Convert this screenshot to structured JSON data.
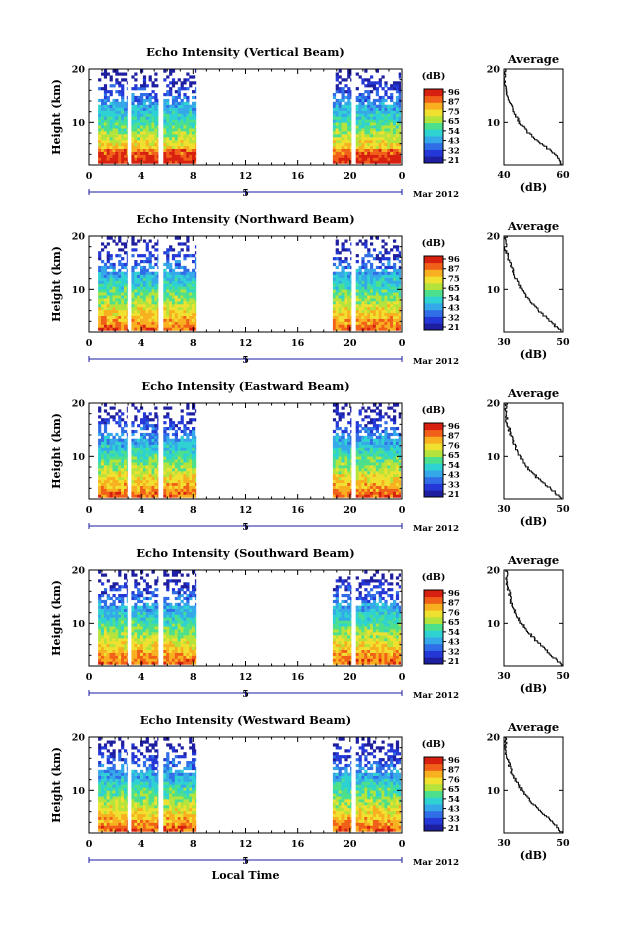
{
  "figure": {
    "date_label": "Mar 2012",
    "date_tick_label": "5",
    "x_axis_label": "Local Time",
    "colorbar_unit": "(dB)",
    "avg_title": "Average",
    "avg_xlabel": "(dB)",
    "colormap": [
      "#1e1ea0",
      "#2438d8",
      "#2f6ee6",
      "#34a8e8",
      "#2fd2d2",
      "#4ce08c",
      "#b4e43c",
      "#f0e030",
      "#f8b020",
      "#f06018",
      "#d82010"
    ]
  },
  "chart_data": [
    {
      "type": "heatmap",
      "title": "Echo Intensity (Vertical Beam)",
      "ylabel": "Height (km)",
      "xlabel": "Local Time",
      "xlim": [
        0,
        24
      ],
      "ylim": [
        2,
        20
      ],
      "x_ticks": [
        "0",
        "4",
        "8",
        "12",
        "16",
        "20",
        "0"
      ],
      "y_ticks": [
        "10",
        "20"
      ],
      "data_segments_hours": [
        [
          0.7,
          2.95
        ],
        [
          3.25,
          5.3
        ],
        [
          5.7,
          8.2
        ],
        [
          18.7,
          20.1
        ],
        [
          20.45,
          23.9
        ]
      ],
      "colorbar_ticks": [
        "96",
        "87",
        "75",
        "65",
        "54",
        "43",
        "32",
        "21"
      ],
      "colorbar_range": [
        21,
        96
      ],
      "average_profile": {
        "title": "Average",
        "xlabel": "(dB)",
        "xlim": [
          40,
          60
        ],
        "x_ticks": [
          "40",
          "60"
        ],
        "heights_km": [
          2,
          4,
          6,
          8,
          10,
          12,
          14,
          16,
          18,
          20
        ],
        "db": [
          60.0,
          57.5,
          53.0,
          48.5,
          45.5,
          43.5,
          42.0,
          40.8,
          40.0,
          40.6
        ]
      }
    },
    {
      "type": "heatmap",
      "title": "Echo Intensity (Northward Beam)",
      "ylabel": "Height (km)",
      "xlabel": "Local Time",
      "xlim": [
        0,
        24
      ],
      "ylim": [
        2,
        20
      ],
      "x_ticks": [
        "0",
        "4",
        "8",
        "12",
        "16",
        "20",
        "0"
      ],
      "y_ticks": [
        "10",
        "20"
      ],
      "data_segments_hours": [
        [
          0.7,
          2.95
        ],
        [
          3.25,
          5.3
        ],
        [
          5.7,
          8.2
        ],
        [
          18.7,
          20.1
        ],
        [
          20.45,
          23.9
        ]
      ],
      "colorbar_ticks": [
        "96",
        "87",
        "75",
        "65",
        "54",
        "43",
        "32",
        "21"
      ],
      "colorbar_range": [
        21,
        96
      ],
      "average_profile": {
        "title": "Average",
        "xlabel": "(dB)",
        "xlim": [
          30,
          50
        ],
        "x_ticks": [
          "30",
          "50"
        ],
        "heights_km": [
          2,
          4,
          6,
          8,
          10,
          12,
          14,
          16,
          18,
          20
        ],
        "db": [
          50.0,
          46.0,
          42.0,
          38.5,
          36.0,
          34.2,
          32.8,
          31.5,
          30.5,
          30.8
        ]
      }
    },
    {
      "type": "heatmap",
      "title": "Echo Intensity (Eastward Beam)",
      "ylabel": "Height (km)",
      "xlabel": "Local Time",
      "xlim": [
        0,
        24
      ],
      "ylim": [
        2,
        20
      ],
      "x_ticks": [
        "0",
        "4",
        "8",
        "12",
        "16",
        "20",
        "0"
      ],
      "y_ticks": [
        "10",
        "20"
      ],
      "data_segments_hours": [
        [
          0.7,
          2.95
        ],
        [
          3.25,
          5.3
        ],
        [
          5.7,
          8.2
        ],
        [
          18.7,
          20.1
        ],
        [
          20.45,
          23.9
        ]
      ],
      "colorbar_ticks": [
        "96",
        "87",
        "76",
        "65",
        "54",
        "43",
        "33",
        "21"
      ],
      "colorbar_range": [
        21,
        96
      ],
      "average_profile": {
        "title": "Average",
        "xlabel": "(dB)",
        "xlim": [
          30,
          50
        ],
        "x_ticks": [
          "30",
          "50"
        ],
        "heights_km": [
          2,
          4,
          6,
          8,
          10,
          12,
          14,
          16,
          18,
          20
        ],
        "db": [
          50.0,
          46.0,
          41.5,
          38.0,
          35.5,
          33.8,
          32.5,
          31.3,
          30.6,
          30.9
        ]
      }
    },
    {
      "type": "heatmap",
      "title": "Echo Intensity (Southward Beam)",
      "ylabel": "Height (km)",
      "xlabel": "Local Time",
      "xlim": [
        0,
        24
      ],
      "ylim": [
        2,
        20
      ],
      "x_ticks": [
        "0",
        "4",
        "8",
        "12",
        "16",
        "20",
        "0"
      ],
      "y_ticks": [
        "10",
        "20"
      ],
      "data_segments_hours": [
        [
          0.7,
          2.95
        ],
        [
          3.25,
          5.3
        ],
        [
          5.7,
          8.2
        ],
        [
          18.7,
          20.1
        ],
        [
          20.45,
          23.9
        ]
      ],
      "colorbar_ticks": [
        "96",
        "87",
        "76",
        "65",
        "54",
        "43",
        "32",
        "21"
      ],
      "colorbar_range": [
        21,
        96
      ],
      "average_profile": {
        "title": "Average",
        "xlabel": "(dB)",
        "xlim": [
          30,
          50
        ],
        "x_ticks": [
          "30",
          "50"
        ],
        "heights_km": [
          2,
          4,
          6,
          8,
          10,
          12,
          14,
          16,
          18,
          20
        ],
        "db": [
          50.0,
          46.5,
          42.5,
          39.0,
          36.0,
          34.0,
          32.5,
          31.8,
          30.8,
          31.0
        ]
      }
    },
    {
      "type": "heatmap",
      "title": "Echo Intensity (Westward Beam)",
      "ylabel": "Height (km)",
      "xlabel": "Local Time",
      "xlim": [
        0,
        24
      ],
      "ylim": [
        2,
        20
      ],
      "x_ticks": [
        "0",
        "4",
        "8",
        "12",
        "16",
        "20",
        "0"
      ],
      "y_ticks": [
        "10",
        "20"
      ],
      "data_segments_hours": [
        [
          0.7,
          2.95
        ],
        [
          3.25,
          5.3
        ],
        [
          5.7,
          8.2
        ],
        [
          18.7,
          20.1
        ],
        [
          20.45,
          23.9
        ]
      ],
      "colorbar_ticks": [
        "96",
        "87",
        "76",
        "65",
        "54",
        "43",
        "33",
        "21"
      ],
      "colorbar_range": [
        21,
        96
      ],
      "average_profile": {
        "title": "Average",
        "xlabel": "(dB)",
        "xlim": [
          30,
          50
        ],
        "x_ticks": [
          "30",
          "50"
        ],
        "heights_km": [
          2,
          4,
          6,
          8,
          10,
          12,
          14,
          16,
          18,
          20
        ],
        "db": [
          50.0,
          46.8,
          42.8,
          39.2,
          36.2,
          34.0,
          32.3,
          31.2,
          30.4,
          30.9
        ]
      }
    }
  ]
}
